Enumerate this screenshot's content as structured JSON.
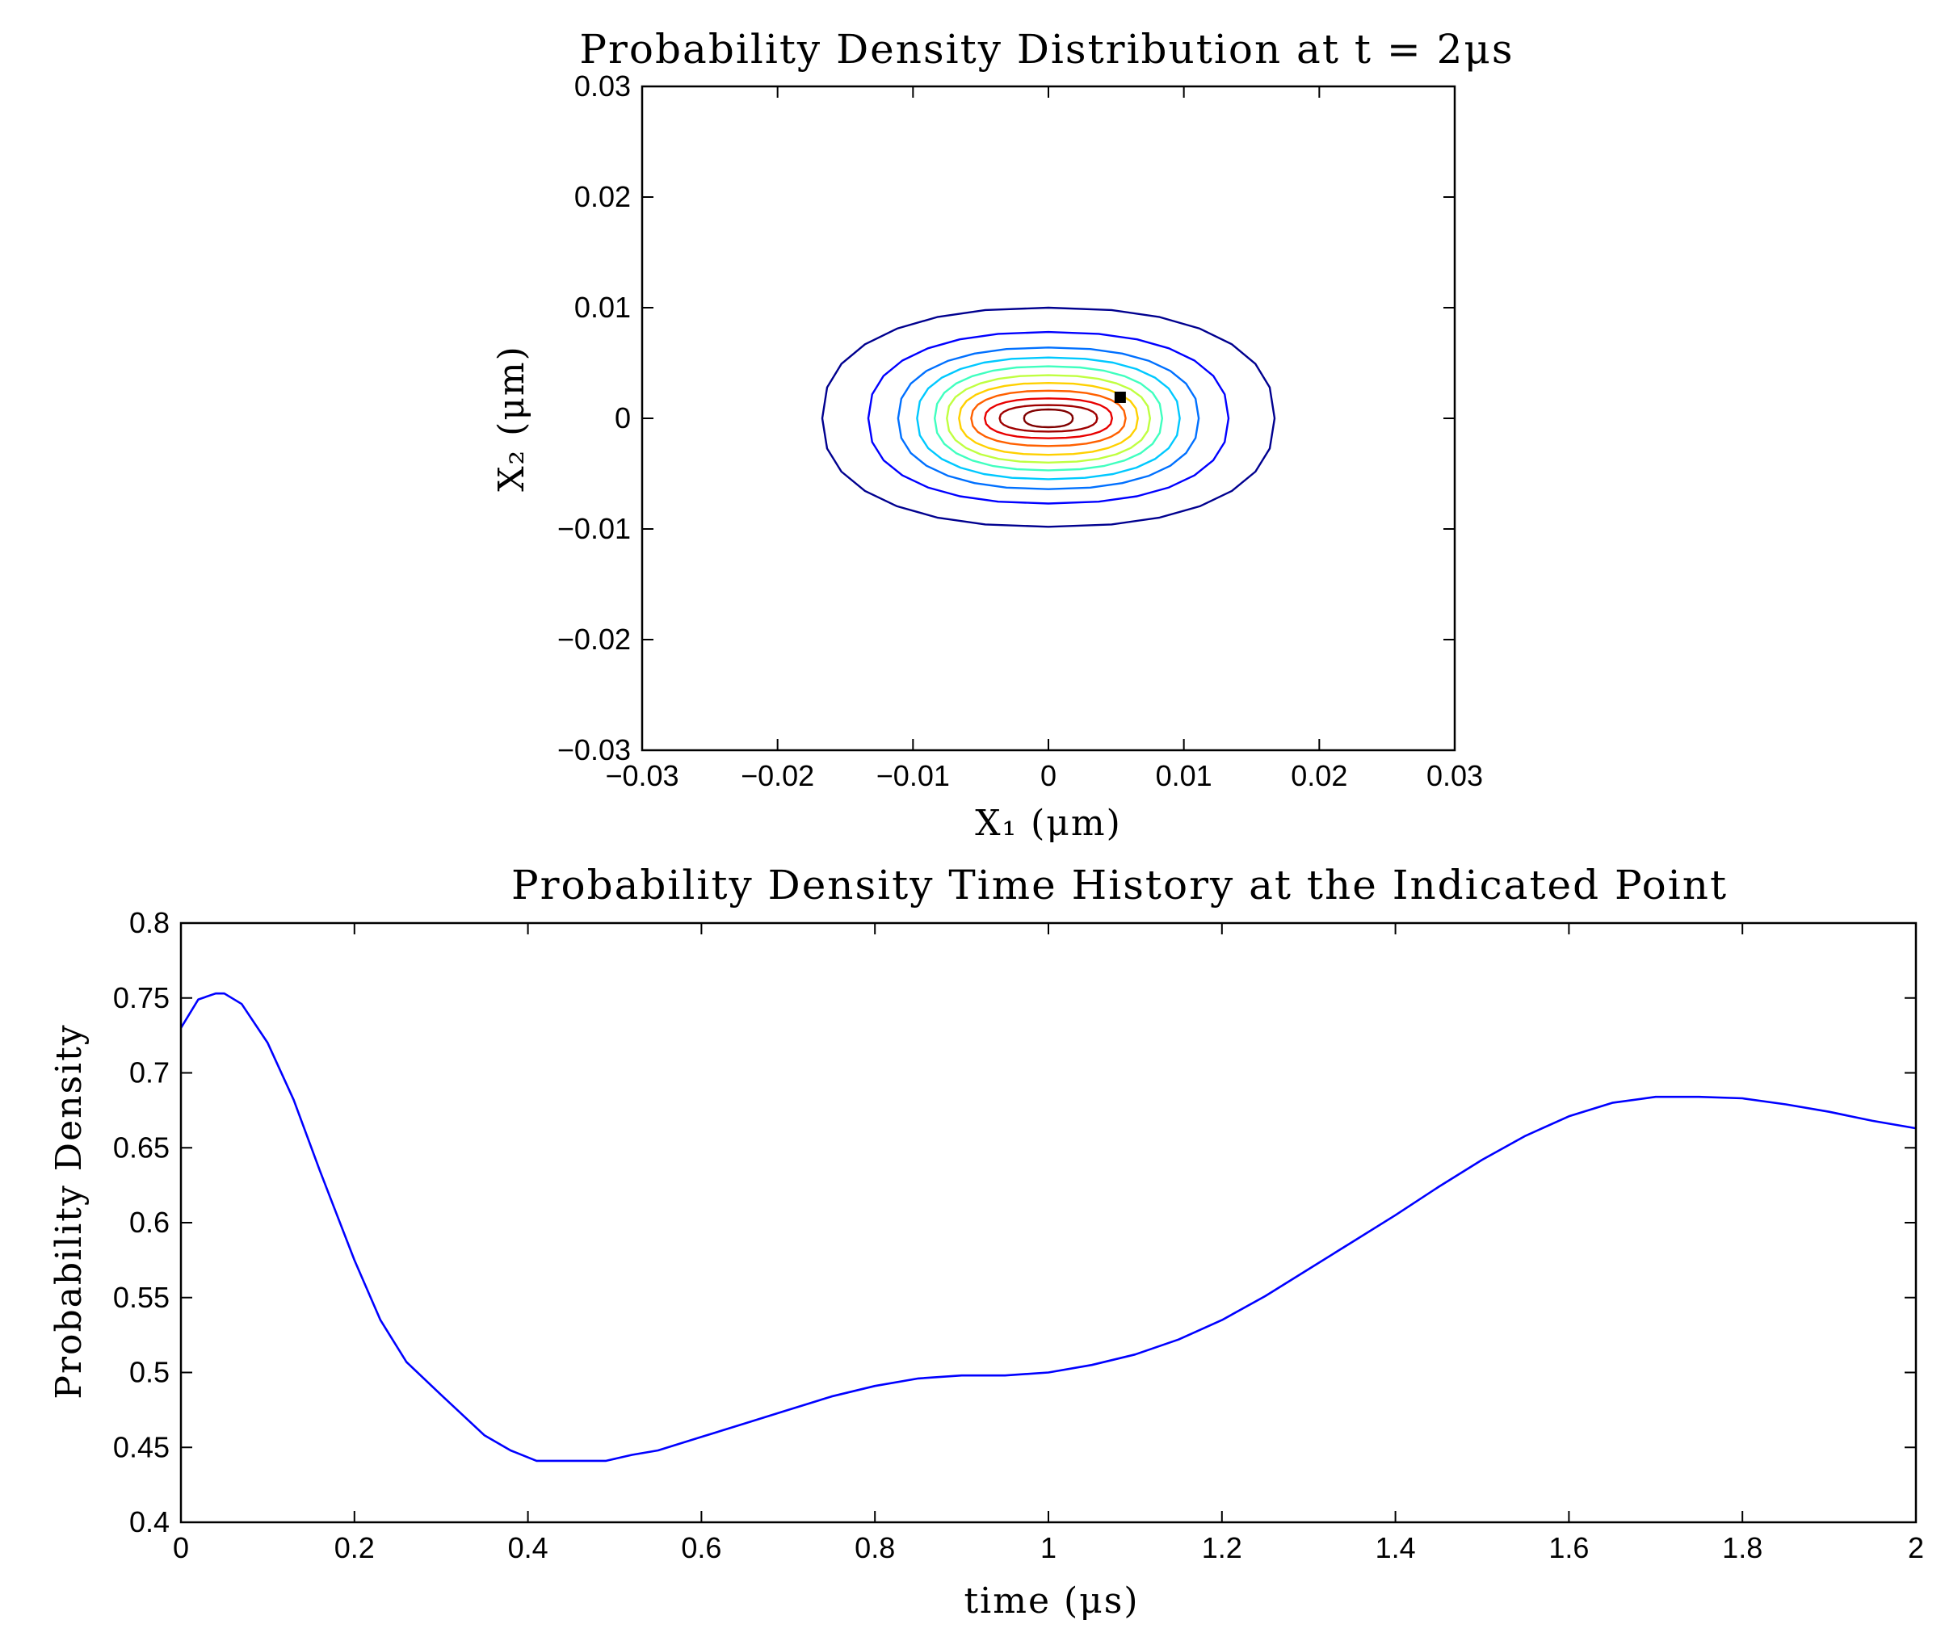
{
  "chart_data": [
    {
      "type": "contour",
      "title": "Probability Density Distribution at t = 2μs",
      "xlabel": "X₁ (μm)",
      "ylabel": "X₂ (μm)",
      "xlim": [
        -0.03,
        0.03
      ],
      "ylim": [
        -0.03,
        0.03
      ],
      "xticks": [
        "−0.03",
        "−0.02",
        "−0.01",
        "0",
        "0.01",
        "0.02",
        "0.03"
      ],
      "yticks": [
        "−0.03",
        "−0.02",
        "−0.01",
        "0",
        "0.01",
        "0.02",
        "0.03"
      ],
      "grid": false,
      "center": [
        0,
        0
      ],
      "contours": [
        {
          "color": "#00008f",
          "rx": 0.0167,
          "ry_top": 0.01,
          "ry_bottom": 0.0098
        },
        {
          "color": "#0000ff",
          "rx": 0.0133,
          "ry_top": 0.0078,
          "ry_bottom": 0.0077
        },
        {
          "color": "#0070ff",
          "rx": 0.0111,
          "ry_top": 0.0064,
          "ry_bottom": 0.0064
        },
        {
          "color": "#00c8ff",
          "rx": 0.0097,
          "ry_top": 0.0055,
          "ry_bottom": 0.0055
        },
        {
          "color": "#40ffbf",
          "rx": 0.0084,
          "ry_top": 0.0047,
          "ry_bottom": 0.0047
        },
        {
          "color": "#bfff40",
          "rx": 0.0075,
          "ry_top": 0.0039,
          "ry_bottom": 0.004
        },
        {
          "color": "#ffd000",
          "rx": 0.0066,
          "ry_top": 0.0032,
          "ry_bottom": 0.0033
        },
        {
          "color": "#ff6000",
          "rx": 0.0057,
          "ry_top": 0.0025,
          "ry_bottom": 0.0025
        },
        {
          "color": "#e80000",
          "rx": 0.0047,
          "ry_top": 0.0018,
          "ry_bottom": 0.0018
        },
        {
          "color": "#9f0000",
          "rx": 0.0036,
          "ry_top": 0.0012,
          "ry_bottom": 0.0012
        },
        {
          "color": "#800000",
          "rx": 0.0018,
          "ry_top": 0.0008,
          "ry_bottom": 0.0008
        }
      ],
      "marker": {
        "x": 0.0053,
        "y": 0.0019,
        "color": "#000000"
      }
    },
    {
      "type": "line",
      "title": "Probability Density Time History at the Indicated Point",
      "xlabel": "time (μs)",
      "ylabel": "Probability Density",
      "xlim": [
        0,
        2
      ],
      "ylim": [
        0.4,
        0.8
      ],
      "xticks": [
        "0",
        "0.2",
        "0.4",
        "0.6",
        "0.8",
        "1",
        "1.2",
        "1.4",
        "1.6",
        "1.8",
        "2"
      ],
      "yticks": [
        "0.4",
        "0.45",
        "0.5",
        "0.55",
        "0.6",
        "0.65",
        "0.7",
        "0.75",
        "0.8"
      ],
      "grid": false,
      "series": [
        {
          "color": "#0000ff",
          "x": [
            0,
            0.02,
            0.04,
            0.05,
            0.07,
            0.1,
            0.13,
            0.16,
            0.2,
            0.23,
            0.26,
            0.3,
            0.35,
            0.38,
            0.41,
            0.45,
            0.49,
            0.52,
            0.55,
            0.6,
            0.65,
            0.7,
            0.75,
            0.8,
            0.85,
            0.9,
            0.95,
            1.0,
            1.05,
            1.1,
            1.15,
            1.2,
            1.25,
            1.3,
            1.35,
            1.4,
            1.45,
            1.5,
            1.55,
            1.6,
            1.65,
            1.7,
            1.75,
            1.8,
            1.85,
            1.9,
            1.95,
            2.0
          ],
          "y": [
            0.73,
            0.749,
            0.753,
            0.753,
            0.746,
            0.72,
            0.682,
            0.635,
            0.575,
            0.535,
            0.507,
            0.485,
            0.458,
            0.448,
            0.441,
            0.441,
            0.441,
            0.445,
            0.448,
            0.457,
            0.466,
            0.475,
            0.484,
            0.491,
            0.496,
            0.498,
            0.498,
            0.5,
            0.505,
            0.512,
            0.522,
            0.535,
            0.551,
            0.569,
            0.587,
            0.605,
            0.624,
            0.642,
            0.658,
            0.671,
            0.68,
            0.684,
            0.684,
            0.683,
            0.679,
            0.674,
            0.668,
            0.663
          ]
        }
      ]
    }
  ]
}
